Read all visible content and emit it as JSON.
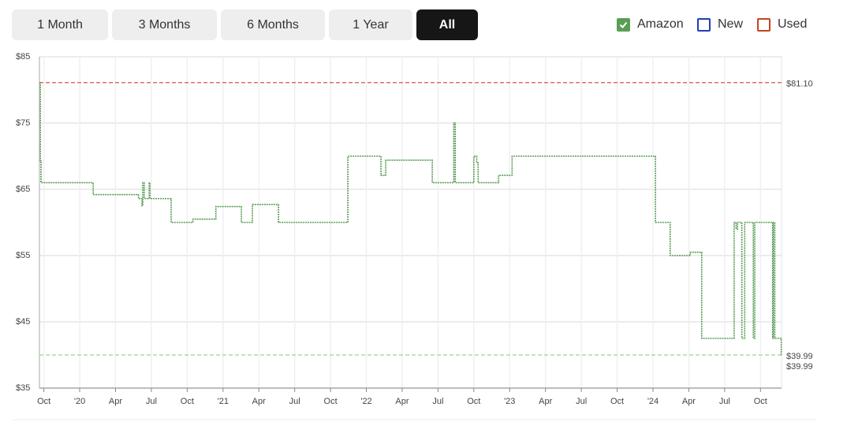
{
  "range_buttons": [
    {
      "label": "1 Month",
      "active": false
    },
    {
      "label": "3 Months",
      "active": false
    },
    {
      "label": "6 Months",
      "active": false
    },
    {
      "label": "1 Year",
      "active": false
    },
    {
      "label": "All",
      "active": true
    }
  ],
  "chart_data": {
    "type": "step",
    "legend": [
      {
        "name": "Amazon",
        "color": "#5a9e55",
        "checked": true
      },
      {
        "name": "New",
        "color": "#1f3fb5",
        "checked": false
      },
      {
        "name": "Used",
        "color": "#c2461d",
        "checked": false
      }
    ],
    "x": [
      2019.72,
      2019.725,
      2019.73,
      2020.094,
      2020.41,
      2020.435,
      2020.44,
      2020.45,
      2020.485,
      2020.49,
      2020.638,
      2020.79,
      2020.95,
      2021.128,
      2021.205,
      2021.387,
      2021.871,
      2022.102,
      2022.135,
      2022.46,
      2022.61,
      2022.62,
      2022.75,
      2022.77,
      2022.78,
      2022.923,
      2023.017,
      2024.017,
      2024.12,
      2024.26,
      2024.34,
      2024.566,
      2024.58,
      2024.59,
      2024.62,
      2024.64,
      2024.7,
      2024.71,
      2024.835,
      2024.84,
      2024.85,
      2024.895
    ],
    "series": [
      {
        "name": "Amazon",
        "color": "#5a9e55",
        "values": [
          81.1,
          69.3,
          66,
          64.2,
          63.6,
          62.5,
          66,
          63.6,
          66,
          63.6,
          60,
          60.5,
          62.4,
          60,
          62.7,
          60,
          70,
          67.1,
          69.4,
          66,
          75,
          66,
          70,
          69,
          66,
          67.1,
          70,
          60,
          55,
          55.5,
          42.5,
          60,
          59,
          60,
          42.5,
          60,
          42.5,
          60,
          42.5,
          60,
          42.5,
          39.99
        ]
      }
    ],
    "xlim": [
      2019.719,
      2024.897
    ],
    "xticks": [
      {
        "value": 2019.75,
        "label": "Oct"
      },
      {
        "value": 2020,
        "label": "'20"
      },
      {
        "value": 2020.25,
        "label": "Apr"
      },
      {
        "value": 2020.5,
        "label": "Jul"
      },
      {
        "value": 2020.75,
        "label": "Oct"
      },
      {
        "value": 2021,
        "label": "'21"
      },
      {
        "value": 2021.25,
        "label": "Apr"
      },
      {
        "value": 2021.5,
        "label": "Jul"
      },
      {
        "value": 2021.75,
        "label": "Oct"
      },
      {
        "value": 2022,
        "label": "'22"
      },
      {
        "value": 2022.25,
        "label": "Apr"
      },
      {
        "value": 2022.5,
        "label": "Jul"
      },
      {
        "value": 2022.75,
        "label": "Oct"
      },
      {
        "value": 2023,
        "label": "'23"
      },
      {
        "value": 2023.25,
        "label": "Apr"
      },
      {
        "value": 2023.5,
        "label": "Jul"
      },
      {
        "value": 2023.75,
        "label": "Oct"
      },
      {
        "value": 2024,
        "label": "'24"
      },
      {
        "value": 2024.25,
        "label": "Apr"
      },
      {
        "value": 2024.5,
        "label": "Jul"
      },
      {
        "value": 2024.75,
        "label": "Oct"
      }
    ],
    "ylim": [
      35,
      85
    ],
    "yticks": [
      {
        "value": 35,
        "label": "$35"
      },
      {
        "value": 45,
        "label": "$45"
      },
      {
        "value": 55,
        "label": "$55"
      },
      {
        "value": 65,
        "label": "$65"
      },
      {
        "value": 75,
        "label": "$75"
      },
      {
        "value": 85,
        "label": "$85"
      }
    ],
    "grid": true,
    "reference_lines": [
      {
        "value": 81.1,
        "label": "$81.10",
        "color": "#d9534f"
      },
      {
        "value": 39.99,
        "label": "$39.99",
        "color": "#8fcf8a"
      }
    ],
    "current_price": {
      "value": 39.99,
      "label": "$39.99",
      "color": "#6fbf6a"
    }
  }
}
